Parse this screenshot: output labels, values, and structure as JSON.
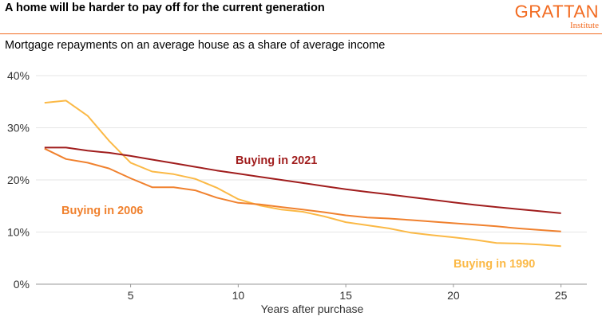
{
  "header": {
    "title": "A home will be harder to pay off for the current generation",
    "subtitle": "Mortgage repayments on an average house as a share of average income",
    "logo_main": "GRATTAN",
    "logo_sub": "Institute"
  },
  "colors": {
    "accent": "#f26b21"
  },
  "chart_data": {
    "type": "line",
    "title": "A home will be harder to pay off for the current generation",
    "subtitle": "Mortgage repayments on an average house as a share of average income",
    "xlabel": "Years after purchase",
    "ylabel": "",
    "xlim": [
      0.6,
      26.2
    ],
    "ylim": [
      0,
      40
    ],
    "xticks": [
      5,
      10,
      15,
      20,
      25
    ],
    "yticks": [
      0,
      10,
      20,
      30,
      40
    ],
    "ytick_labels": [
      "0%",
      "10%",
      "20%",
      "30%",
      "40%"
    ],
    "grid": "horizontal",
    "series": [
      {
        "name": "Buying in 2021",
        "color": "#a01d1d",
        "x": [
          1,
          2,
          3,
          4,
          5,
          6,
          7,
          8,
          9,
          10,
          11,
          12,
          13,
          14,
          15,
          16,
          17,
          18,
          19,
          20,
          21,
          22,
          23,
          24,
          25
        ],
        "values": [
          26.2,
          26.2,
          25.6,
          25.2,
          24.6,
          23.9,
          23.2,
          22.5,
          21.8,
          21.2,
          20.6,
          20.0,
          19.4,
          18.8,
          18.2,
          17.7,
          17.2,
          16.7,
          16.2,
          15.7,
          15.2,
          14.8,
          14.4,
          14.0,
          13.6
        ]
      },
      {
        "name": "Buying in 2006",
        "color": "#f0812e",
        "x": [
          1,
          2,
          3,
          4,
          5,
          6,
          7,
          8,
          9,
          10,
          11,
          12,
          13,
          14,
          15,
          16,
          17,
          18,
          19,
          20,
          21,
          22,
          23,
          24,
          25
        ],
        "values": [
          26.0,
          24.0,
          23.3,
          22.2,
          20.3,
          18.6,
          18.6,
          18.0,
          16.6,
          15.6,
          15.3,
          14.8,
          14.3,
          13.8,
          13.2,
          12.8,
          12.6,
          12.3,
          12.0,
          11.7,
          11.4,
          11.1,
          10.7,
          10.4,
          10.1
        ]
      },
      {
        "name": "Buying in 1990",
        "color": "#fbb946",
        "x": [
          1,
          2,
          3,
          4,
          5,
          6,
          7,
          8,
          9,
          10,
          11,
          12,
          13,
          14,
          15,
          16,
          17,
          18,
          19,
          20,
          21,
          22,
          23,
          24,
          25
        ],
        "values": [
          34.8,
          35.2,
          32.3,
          27.5,
          23.3,
          21.6,
          21.1,
          20.2,
          18.5,
          16.3,
          15.1,
          14.3,
          13.9,
          13.0,
          11.9,
          11.3,
          10.7,
          9.9,
          9.4,
          9.0,
          8.5,
          7.9,
          7.8,
          7.6,
          7.3
        ]
      }
    ]
  }
}
